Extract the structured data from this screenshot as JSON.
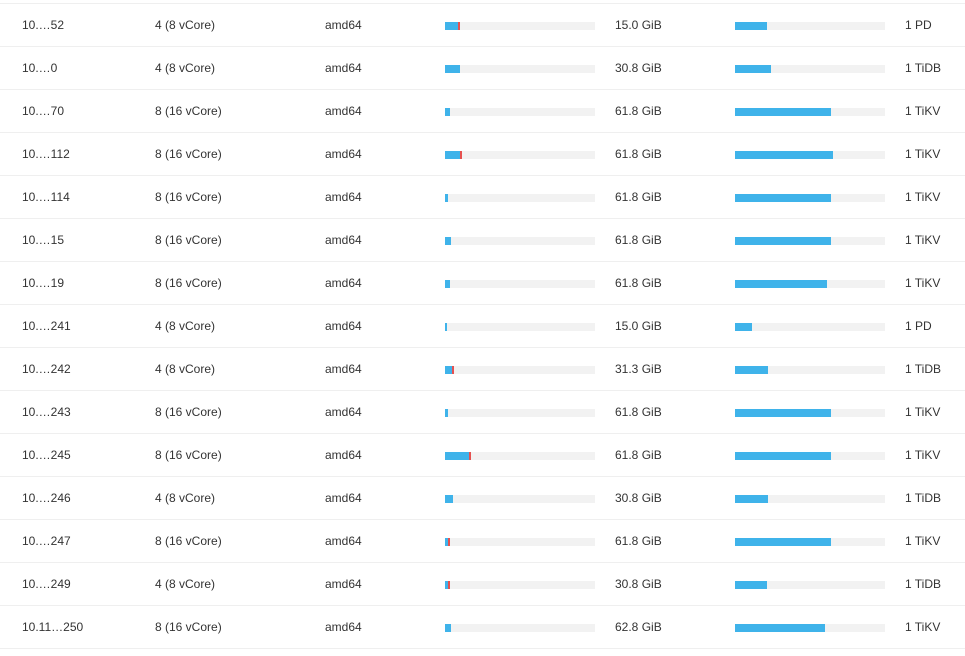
{
  "theme": {
    "bar_fill_color": "#3fb3ea",
    "bar_track_color": "#f2f2f2",
    "peak_marker_color": "#e65150",
    "row_border_color": "#efefef"
  },
  "rows": [
    {
      "ip": "10.…52",
      "cpu": "4 (8 vCore)",
      "arch": "amd64",
      "cpu_usage": 0.09,
      "cpu_peak": 0.1,
      "memory": "15.0 GiB",
      "mem_usage": 0.21,
      "instances": "1 PD"
    },
    {
      "ip": "10.…0",
      "cpu": "4 (8 vCore)",
      "arch": "amd64",
      "cpu_usage": 0.1,
      "cpu_peak": null,
      "memory": "30.8 GiB",
      "mem_usage": 0.24,
      "instances": "1 TiDB"
    },
    {
      "ip": "10.…70",
      "cpu": "8 (16 vCore)",
      "arch": "amd64",
      "cpu_usage": 0.035,
      "cpu_peak": null,
      "memory": "61.8 GiB",
      "mem_usage": 0.64,
      "instances": "1 TiKV"
    },
    {
      "ip": "10.…112",
      "cpu": "8 (16 vCore)",
      "arch": "amd64",
      "cpu_usage": 0.1,
      "cpu_peak": 0.11,
      "memory": "61.8 GiB",
      "mem_usage": 0.65,
      "instances": "1 TiKV"
    },
    {
      "ip": "10.…114",
      "cpu": "8 (16 vCore)",
      "arch": "amd64",
      "cpu_usage": 0.02,
      "cpu_peak": null,
      "memory": "61.8 GiB",
      "mem_usage": 0.64,
      "instances": "1 TiKV"
    },
    {
      "ip": "10.…15",
      "cpu": "8 (16 vCore)",
      "arch": "amd64",
      "cpu_usage": 0.04,
      "cpu_peak": null,
      "memory": "61.8 GiB",
      "mem_usage": 0.64,
      "instances": "1 TiKV"
    },
    {
      "ip": "10.…19",
      "cpu": "8 (16 vCore)",
      "arch": "amd64",
      "cpu_usage": 0.035,
      "cpu_peak": null,
      "memory": "61.8 GiB",
      "mem_usage": 0.61,
      "instances": "1 TiKV"
    },
    {
      "ip": "10.…241",
      "cpu": "4 (8 vCore)",
      "arch": "amd64",
      "cpu_usage": 0.015,
      "cpu_peak": null,
      "memory": "15.0 GiB",
      "mem_usage": 0.11,
      "instances": "1 PD"
    },
    {
      "ip": "10.…242",
      "cpu": "4 (8 vCore)",
      "arch": "amd64",
      "cpu_usage": 0.05,
      "cpu_peak": 0.06,
      "memory": "31.3 GiB",
      "mem_usage": 0.22,
      "instances": "1 TiDB"
    },
    {
      "ip": "10.…243",
      "cpu": "8 (16 vCore)",
      "arch": "amd64",
      "cpu_usage": 0.02,
      "cpu_peak": null,
      "memory": "61.8 GiB",
      "mem_usage": 0.64,
      "instances": "1 TiKV"
    },
    {
      "ip": "10.…245",
      "cpu": "8 (16 vCore)",
      "arch": "amd64",
      "cpu_usage": 0.16,
      "cpu_peak": 0.17,
      "memory": "61.8 GiB",
      "mem_usage": 0.64,
      "instances": "1 TiKV"
    },
    {
      "ip": "10.…246",
      "cpu": "4 (8 vCore)",
      "arch": "amd64",
      "cpu_usage": 0.05,
      "cpu_peak": null,
      "memory": "30.8 GiB",
      "mem_usage": 0.22,
      "instances": "1 TiDB"
    },
    {
      "ip": "10.…247",
      "cpu": "8 (16 vCore)",
      "arch": "amd64",
      "cpu_usage": 0.025,
      "cpu_peak": 0.03,
      "memory": "61.8 GiB",
      "mem_usage": 0.64,
      "instances": "1 TiKV"
    },
    {
      "ip": "10.…249",
      "cpu": "4 (8 vCore)",
      "arch": "amd64",
      "cpu_usage": 0.025,
      "cpu_peak": 0.03,
      "memory": "30.8 GiB",
      "mem_usage": 0.21,
      "instances": "1 TiDB"
    },
    {
      "ip": "10.11…250",
      "cpu": "8 (16 vCore)",
      "arch": "amd64",
      "cpu_usage": 0.04,
      "cpu_peak": null,
      "memory": "62.8 GiB",
      "mem_usage": 0.6,
      "instances": "1 TiKV"
    }
  ]
}
